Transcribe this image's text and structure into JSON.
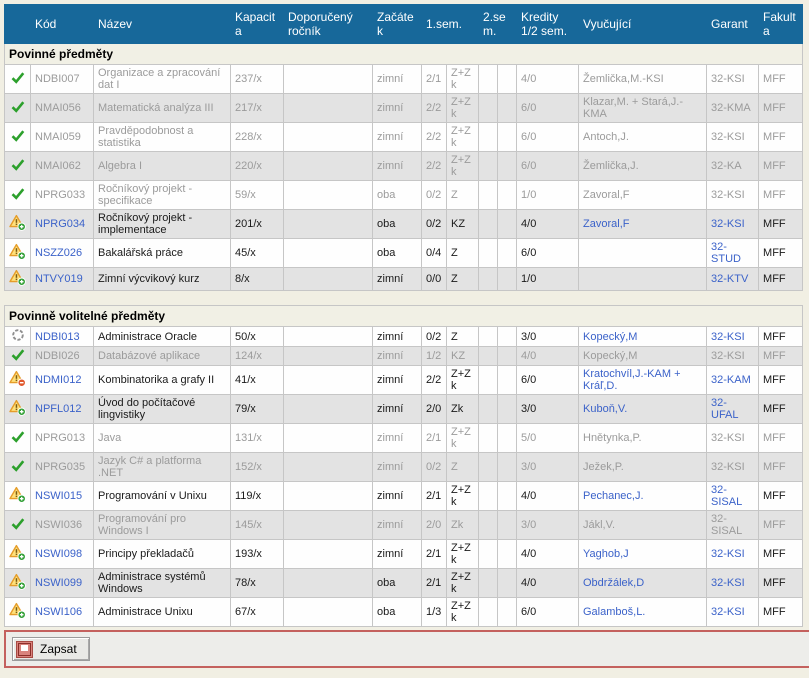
{
  "colors": {
    "header_bg": "#17689a",
    "header_text": "#ffffff",
    "page_bg": "#f1efe3",
    "zebra_row": "#e3e3e3",
    "muted_text": "#9b9b9b",
    "link_blue": "#3b62c9",
    "check_green": "#2ca02c",
    "warning_yellow": "#ffd24d",
    "footer_border_red": "#c4615e"
  },
  "table": {
    "header": {
      "cells": [
        "",
        "Kód",
        "Název",
        "Kapacita",
        "Doporučený ročník",
        "Začátek",
        "1.sem.",
        "2.sem.",
        "Kredity 1/2 sem.",
        "Vyučující",
        "Garant",
        "Fakulta"
      ]
    },
    "sections": [
      {
        "title": "Povinné předměty",
        "rows": [
          {
            "icon": "check",
            "state": "enrolled",
            "code": "NDBI007",
            "name": "Organizace a zpracování dat I",
            "capacity": "237/x",
            "year": "",
            "start": "zimní",
            "s1h": "2/1",
            "s1x": "Z+Zk",
            "s2h": "",
            "s2x": "",
            "credits": "4/0",
            "teacher": "Žemlička,M.-KSI",
            "garant": "32-KSI",
            "faculty": "MFF"
          },
          {
            "icon": "check",
            "state": "enrolled",
            "code": "NMAI056",
            "name": "Matematická analýza III",
            "capacity": "217/x",
            "year": "",
            "start": "zimní",
            "s1h": "2/2",
            "s1x": "Z+Zk",
            "s2h": "",
            "s2x": "",
            "credits": "6/0",
            "teacher": "Klazar,M. + Stará,J.-KMA",
            "garant": "32-KMA",
            "faculty": "MFF"
          },
          {
            "icon": "check",
            "state": "enrolled",
            "code": "NMAI059",
            "name": "Pravděpodobnost a statistika",
            "capacity": "228/x",
            "year": "",
            "start": "zimní",
            "s1h": "2/2",
            "s1x": "Z+Zk",
            "s2h": "",
            "s2x": "",
            "credits": "6/0",
            "teacher": "Antoch,J.",
            "garant": "32-KSI",
            "faculty": "MFF"
          },
          {
            "icon": "check",
            "state": "enrolled",
            "code": "NMAI062",
            "name": "Algebra I",
            "capacity": "220/x",
            "year": "",
            "start": "zimní",
            "s1h": "2/2",
            "s1x": "Z+Zk",
            "s2h": "",
            "s2x": "",
            "credits": "6/0",
            "teacher": "Žemlička,J.",
            "garant": "32-KA",
            "faculty": "MFF"
          },
          {
            "icon": "check",
            "state": "enrolled",
            "code": "NPRG033",
            "name": "Ročníkový projekt - specifikace",
            "capacity": "59/x",
            "year": "",
            "start": "oba",
            "s1h": "0/2",
            "s1x": "Z",
            "s2h": "",
            "s2x": "",
            "credits": "1/0",
            "teacher": "Zavoral,F",
            "garant": "32-KSI",
            "faculty": "MFF"
          },
          {
            "icon": "warn-add",
            "state": "active",
            "code": "NPRG034",
            "name": "Ročníkový projekt - implementace",
            "capacity": "201/x",
            "year": "",
            "start": "oba",
            "s1h": "0/2",
            "s1x": "KZ",
            "s2h": "",
            "s2x": "",
            "credits": "4/0",
            "teacher": "Zavoral,F",
            "garant": "32-KSI",
            "faculty": "MFF"
          },
          {
            "icon": "warn-add",
            "state": "active",
            "code": "NSZZ026",
            "name": "Bakalářská práce",
            "capacity": "45/x",
            "year": "",
            "start": "oba",
            "s1h": "0/4",
            "s1x": "Z",
            "s2h": "",
            "s2x": "",
            "credits": "6/0",
            "teacher": "",
            "garant": "32-STUD",
            "faculty": "MFF"
          },
          {
            "icon": "warn-add",
            "state": "active",
            "code": "NTVY019",
            "name": "Zimní výcvikový kurz",
            "capacity": "8/x",
            "year": "",
            "start": "zimní",
            "s1h": "0/0",
            "s1x": "Z",
            "s2h": "",
            "s2x": "",
            "credits": "1/0",
            "teacher": "",
            "garant": "32-KTV",
            "faculty": "MFF"
          }
        ]
      },
      {
        "title": "Povinně volitelné předměty",
        "rows": [
          {
            "icon": "circle",
            "state": "active",
            "code": "NDBI013",
            "name": "Administrace Oracle",
            "capacity": "50/x",
            "year": "",
            "start": "zimní",
            "s1h": "0/2",
            "s1x": "Z",
            "s2h": "",
            "s2x": "",
            "credits": "3/0",
            "teacher": "Kopecký,M",
            "garant": "32-KSI",
            "faculty": "MFF"
          },
          {
            "icon": "check",
            "state": "enrolled",
            "code": "NDBI026",
            "name": "Databázové aplikace",
            "capacity": "124/x",
            "year": "",
            "start": "zimní",
            "s1h": "1/2",
            "s1x": "KZ",
            "s2h": "",
            "s2x": "",
            "credits": "4/0",
            "teacher": "Kopecký,M",
            "garant": "32-KSI",
            "faculty": "MFF"
          },
          {
            "icon": "warn-remove",
            "state": "active",
            "code": "NDMI012",
            "name": "Kombinatorika a grafy II",
            "capacity": "41/x",
            "year": "",
            "start": "zimní",
            "s1h": "2/2",
            "s1x": "Z+Zk",
            "s2h": "",
            "s2x": "",
            "credits": "6/0",
            "teacher": "Kratochvíl,J.-KAM + Kráľ,D.",
            "garant": "32-KAM",
            "faculty": "MFF"
          },
          {
            "icon": "warn-add",
            "state": "active",
            "code": "NPFL012",
            "name": "Úvod do počítačové lingvistiky",
            "capacity": "79/x",
            "year": "",
            "start": "zimní",
            "s1h": "2/0",
            "s1x": "Zk",
            "s2h": "",
            "s2x": "",
            "credits": "3/0",
            "teacher": "Kuboň,V.",
            "garant": "32-UFAL",
            "faculty": "MFF"
          },
          {
            "icon": "check",
            "state": "enrolled",
            "code": "NPRG013",
            "name": "Java",
            "capacity": "131/x",
            "year": "",
            "start": "zimní",
            "s1h": "2/1",
            "s1x": "Z+Zk",
            "s2h": "",
            "s2x": "",
            "credits": "5/0",
            "teacher": "Hnětynka,P.",
            "garant": "32-KSI",
            "faculty": "MFF"
          },
          {
            "icon": "check",
            "state": "enrolled",
            "code": "NPRG035",
            "name": "Jazyk C# a platforma .NET",
            "capacity": "152/x",
            "year": "",
            "start": "zimní",
            "s1h": "0/2",
            "s1x": "Z",
            "s2h": "",
            "s2x": "",
            "credits": "3/0",
            "teacher": "Ježek,P.",
            "garant": "32-KSI",
            "faculty": "MFF"
          },
          {
            "icon": "warn-add",
            "state": "active",
            "code": "NSWI015",
            "name": "Programování v Unixu",
            "capacity": "119/x",
            "year": "",
            "start": "zimní",
            "s1h": "2/1",
            "s1x": "Z+Zk",
            "s2h": "",
            "s2x": "",
            "credits": "4/0",
            "teacher": "Pechanec,J.",
            "garant": "32-SISAL",
            "faculty": "MFF"
          },
          {
            "icon": "check",
            "state": "enrolled",
            "code": "NSWI036",
            "name": "Programování pro Windows I",
            "capacity": "145/x",
            "year": "",
            "start": "zimní",
            "s1h": "2/0",
            "s1x": "Zk",
            "s2h": "",
            "s2x": "",
            "credits": "3/0",
            "teacher": "Jákl,V.",
            "garant": "32-SISAL",
            "faculty": "MFF"
          },
          {
            "icon": "warn-add",
            "state": "active",
            "code": "NSWI098",
            "name": "Principy překladačů",
            "capacity": "193/x",
            "year": "",
            "start": "zimní",
            "s1h": "2/1",
            "s1x": "Z+Zk",
            "s2h": "",
            "s2x": "",
            "credits": "4/0",
            "teacher": "Yaghob,J",
            "garant": "32-KSI",
            "faculty": "MFF"
          },
          {
            "icon": "warn-add",
            "state": "active",
            "code": "NSWI099",
            "name": "Administrace systémů Windows",
            "capacity": "78/x",
            "year": "",
            "start": "oba",
            "s1h": "2/1",
            "s1x": "Z+Zk",
            "s2h": "",
            "s2x": "",
            "credits": "4/0",
            "teacher": "Obdržálek,D",
            "garant": "32-KSI",
            "faculty": "MFF"
          },
          {
            "icon": "warn-add",
            "state": "active",
            "code": "NSWI106",
            "name": "Administrace Unixu",
            "capacity": "67/x",
            "year": "",
            "start": "oba",
            "s1h": "1/3",
            "s1x": "Z+Zk",
            "s2h": "",
            "s2x": "",
            "credits": "6/0",
            "teacher": "Galamboš,L.",
            "garant": "32-KSI",
            "faculty": "MFF"
          }
        ]
      }
    ]
  },
  "footer": {
    "button_label": "Zapsat"
  }
}
